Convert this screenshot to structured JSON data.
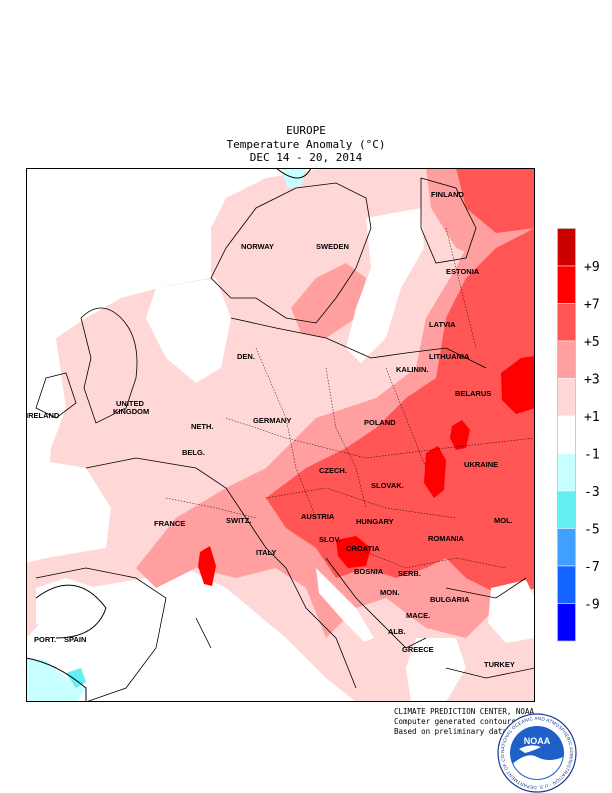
{
  "header": {
    "region": "EUROPE",
    "subtitle": "Temperature Anomaly (°C)",
    "period": "DEC 14 - 20, 2014"
  },
  "map_labels": {
    "finland": "FINLAND",
    "norway": "NORWAY",
    "sweden": "SWEDEN",
    "estonia": "ESTONIA",
    "latvia": "LATVIA",
    "lithuania": "LITHUANIA",
    "kalinin": "KALININ.",
    "den": "DEN.",
    "belarus": "BELARUS",
    "ireland": "IRELAND",
    "uk_1": "UNITED",
    "uk_2": "KINGDOM",
    "neth": "NETH.",
    "germany": "GERMANY",
    "poland": "POLAND",
    "belg": "BELG.",
    "czech": "CZECH.",
    "slovak": "SLOVAK.",
    "ukraine": "UKRAINE",
    "france": "FRANCE",
    "switz": "SWITZ.",
    "austria": "AUSTRIA",
    "hungary": "HUNGARY",
    "mol": "MOL.",
    "slov": "SLOV.",
    "croatia": "CROATIA",
    "romania": "ROMANIA",
    "italy": "ITALY",
    "bosnia": "BOSNIA",
    "serb": "SERB.",
    "mon": "MON.",
    "bulgaria": "BULGARIA",
    "port": "PORT.",
    "spain": "SPAIN",
    "mace": "MACE.",
    "alb": "ALB.",
    "greece": "GREECE",
    "turkey": "TURKEY"
  },
  "legend": {
    "bins": [
      {
        "color": "#cc0000",
        "label": ""
      },
      {
        "color": "#ff0000",
        "label": "+9"
      },
      {
        "color": "#ff5555",
        "label": "+7"
      },
      {
        "color": "#ff9f9f",
        "label": "+5"
      },
      {
        "color": "#ffd7d7",
        "label": "+3"
      },
      {
        "color": "#ffffff",
        "label": "+1"
      },
      {
        "color": "#c8ffff",
        "label": "-1"
      },
      {
        "color": "#64f0f0",
        "label": "-3"
      },
      {
        "color": "#40a0ff",
        "label": "-5"
      },
      {
        "color": "#1464ff",
        "label": "-7"
      },
      {
        "color": "#0000ff",
        "label": "-9"
      }
    ]
  },
  "credits": {
    "line1": "CLIMATE PREDICTION CENTER, NOAA",
    "line2": "Computer generated contours",
    "line3": "Based on preliminary data"
  },
  "logo": {
    "text": "NOAA",
    "ring_text": "NATIONAL OCEANIC AND ATMOSPHERIC ADMINISTRATION · U.S. DEPARTMENT OF COMMERCE"
  }
}
